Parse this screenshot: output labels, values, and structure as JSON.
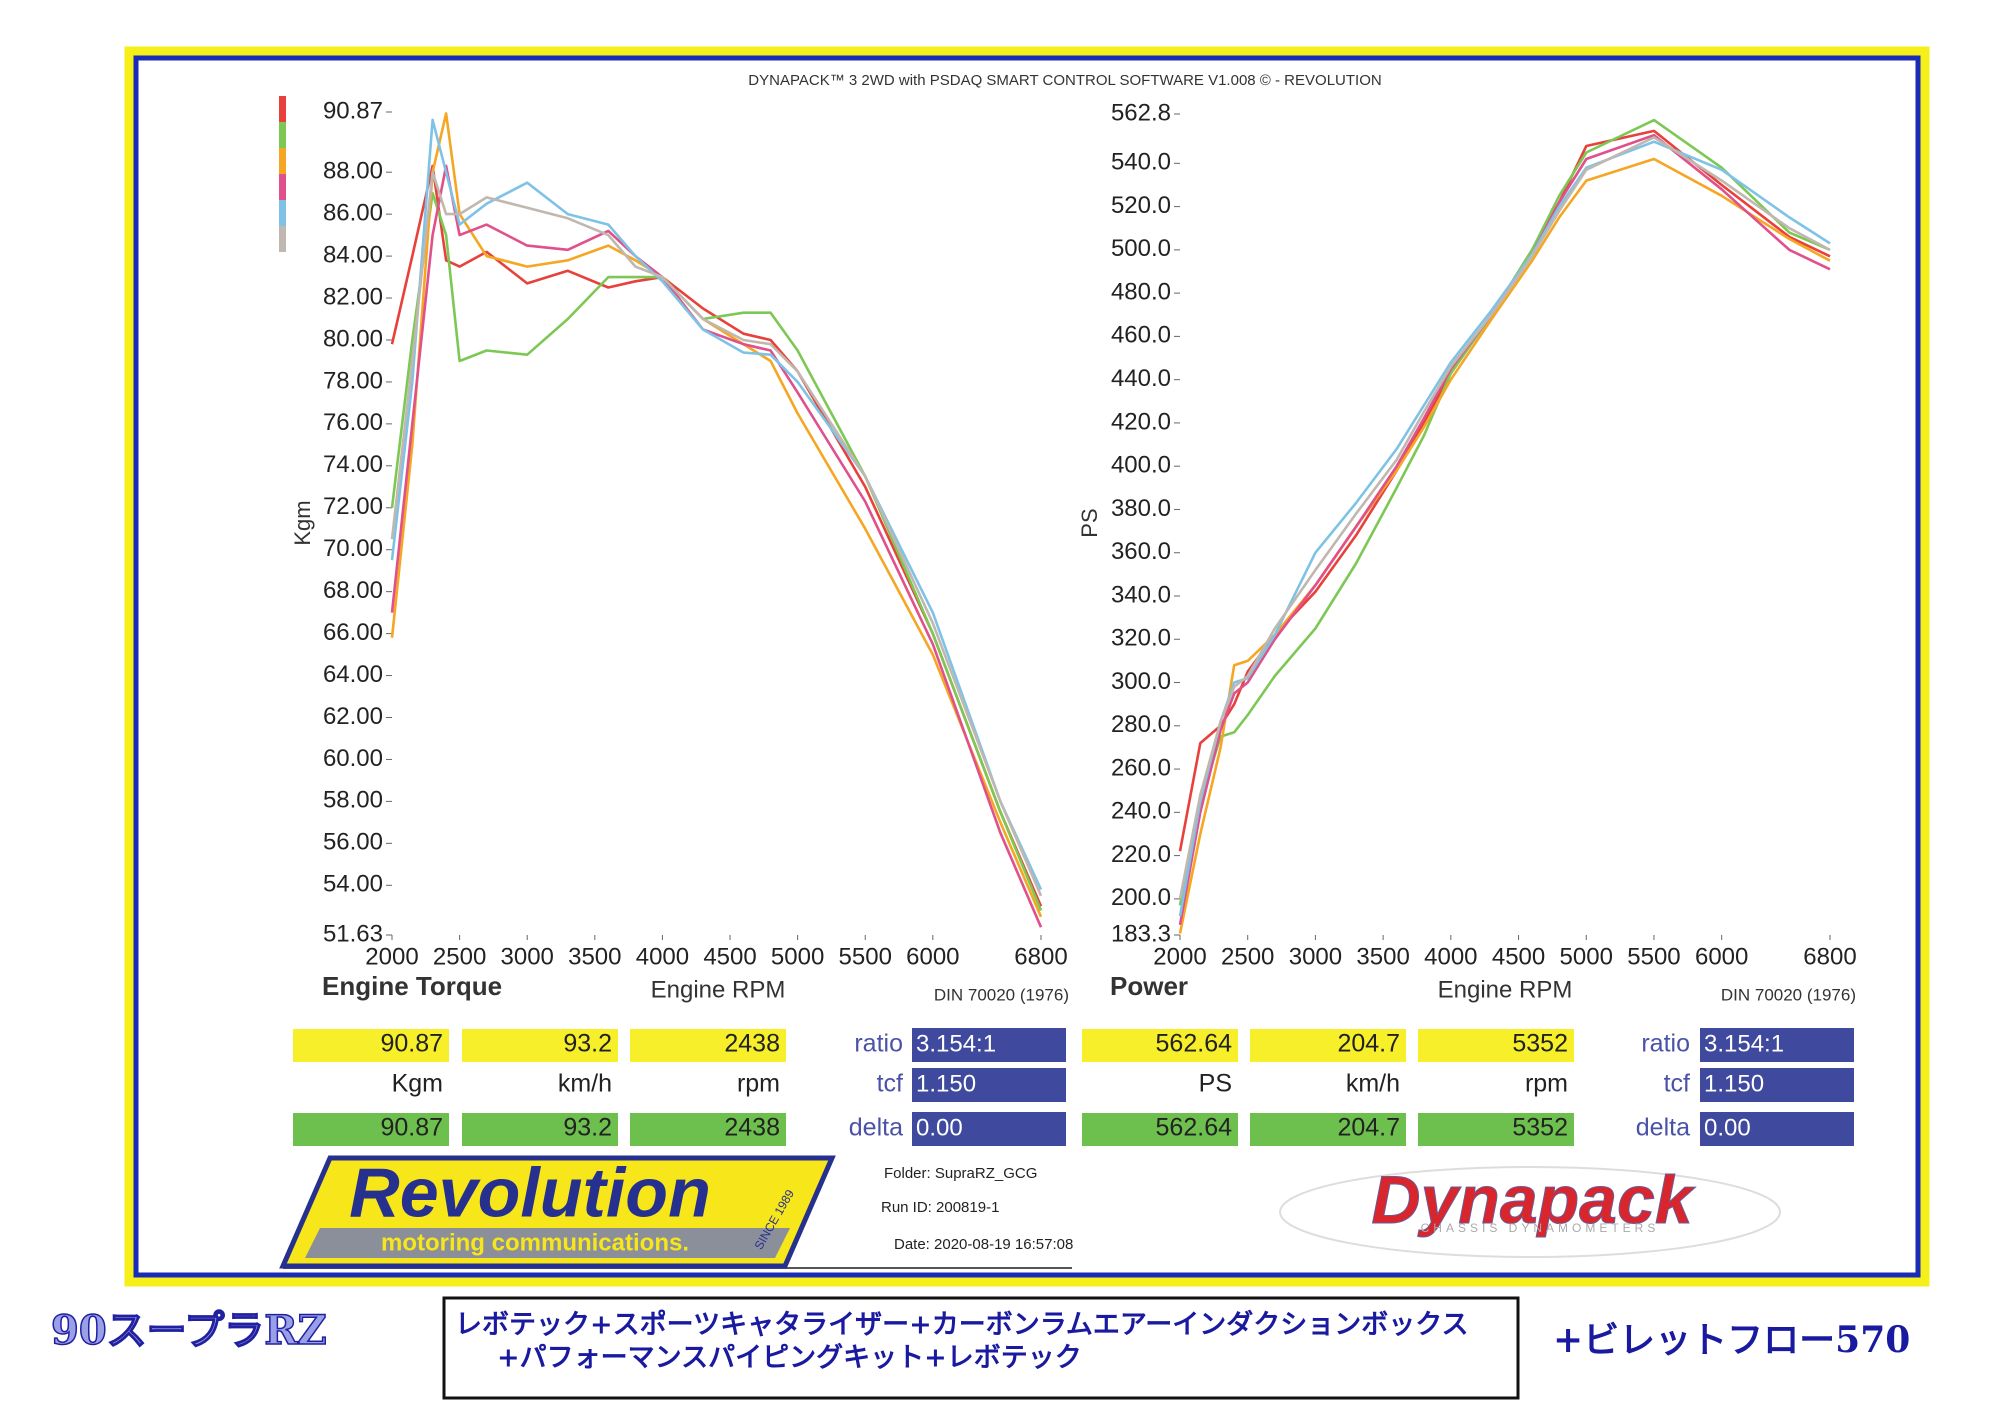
{
  "header": {
    "title": "DYNAPACK™ 3 2WD with PSDAQ SMART CONTROL SOFTWARE V1.008 © - REVOLUTION"
  },
  "chart_data": [
    {
      "type": "line",
      "title": "Engine Torque",
      "xlabel": "Engine RPM",
      "ylabel": "Kgm",
      "note": "DIN 70020 (1976)",
      "x": [
        2000,
        2150,
        2300,
        2400,
        2500,
        2700,
        3000,
        3300,
        3600,
        3800,
        4000,
        4300,
        4600,
        4800,
        5000,
        5500,
        6000,
        6500,
        6800
      ],
      "xlim": [
        2000,
        6800
      ],
      "xticks": [
        2000,
        2500,
        3000,
        3500,
        4000,
        4500,
        5000,
        5500,
        6000,
        6800
      ],
      "ylim": [
        51.63,
        90.87
      ],
      "yticks": [
        51.63,
        {
          "value": 54,
          "label": "54.00"
        },
        {
          "value": 56,
          "label": "56.00"
        },
        {
          "value": 58,
          "label": "58.00"
        },
        {
          "value": 60,
          "label": "60.00"
        },
        {
          "value": 62,
          "label": "62.00"
        },
        {
          "value": 64,
          "label": "64.00"
        },
        {
          "value": 66,
          "label": "66.00"
        },
        {
          "value": 68,
          "label": "68.00"
        },
        {
          "value": 70,
          "label": "70.00"
        },
        {
          "value": 72,
          "label": "72.00"
        },
        {
          "value": 74,
          "label": "74.00"
        },
        {
          "value": 76,
          "label": "76.00"
        },
        {
          "value": 78,
          "label": "78.00"
        },
        {
          "value": 80,
          "label": "80.00"
        },
        {
          "value": 82,
          "label": "82.00"
        },
        {
          "value": 84,
          "label": "84.00"
        },
        {
          "value": 86,
          "label": "86.00"
        },
        {
          "value": 88,
          "label": "88.00"
        },
        90.87
      ],
      "series": [
        {
          "color": "#e8413c",
          "values": [
            79.8,
            84,
            88.3,
            83.8,
            83.5,
            84.2,
            82.7,
            83.3,
            82.5,
            82.8,
            83,
            81.5,
            80.3,
            80,
            78.5,
            73,
            66,
            57.5,
            53
          ]
        },
        {
          "color": "#7dc855",
          "values": [
            72,
            80,
            87,
            85,
            79,
            79.5,
            79.3,
            81,
            83,
            83,
            83,
            81,
            81.3,
            81.3,
            79.5,
            73.5,
            66,
            57.5,
            52.8
          ]
        },
        {
          "color": "#f5a623",
          "values": [
            65.8,
            75,
            88,
            90.8,
            86,
            84,
            83.5,
            83.8,
            84.5,
            83.8,
            83,
            81,
            79.8,
            79,
            76.5,
            71,
            65,
            57,
            52.5
          ]
        },
        {
          "color": "#e0508a",
          "values": [
            67,
            76,
            85,
            88.3,
            85,
            85.5,
            84.5,
            84.3,
            85.2,
            84,
            83,
            80.5,
            79.8,
            79.5,
            77.5,
            72.3,
            65.5,
            56.5,
            52
          ]
        },
        {
          "color": "#7ec3e6",
          "values": [
            69.5,
            78,
            90.5,
            88,
            85.5,
            86.5,
            87.5,
            86,
            85.5,
            84,
            82.8,
            80.5,
            79.4,
            79.3,
            78,
            73.5,
            67,
            58,
            53.8
          ]
        },
        {
          "color": "#c0b8b0",
          "values": [
            70.5,
            79,
            88,
            86,
            86,
            86.8,
            86.3,
            85.8,
            85,
            83.5,
            83,
            81,
            80,
            79.8,
            78.5,
            73.5,
            66.5,
            58,
            53.5
          ]
        }
      ]
    },
    {
      "type": "line",
      "title": "Power",
      "xlabel": "Engine RPM",
      "ylabel": "PS",
      "note": "DIN 70020 (1976)",
      "x": [
        2000,
        2150,
        2300,
        2400,
        2500,
        2700,
        3000,
        3300,
        3600,
        3800,
        4000,
        4300,
        4600,
        4800,
        5000,
        5500,
        6000,
        6500,
        6800
      ],
      "xlim": [
        2000,
        6800
      ],
      "xticks": [
        2000,
        2500,
        3000,
        3500,
        4000,
        4500,
        5000,
        5500,
        6000,
        6800
      ],
      "ylim": [
        183.3,
        562.8
      ],
      "yticks": [
        183.3,
        {
          "value": 200,
          "label": "200.0"
        },
        {
          "value": 220,
          "label": "220.0"
        },
        {
          "value": 240,
          "label": "240.0"
        },
        {
          "value": 260,
          "label": "260.0"
        },
        {
          "value": 280,
          "label": "280.0"
        },
        {
          "value": 300,
          "label": "300.0"
        },
        {
          "value": 320,
          "label": "320.0"
        },
        {
          "value": 340,
          "label": "340.0"
        },
        {
          "value": 360,
          "label": "360.0"
        },
        {
          "value": 380,
          "label": "380.0"
        },
        {
          "value": 400,
          "label": "400.0"
        },
        {
          "value": 420,
          "label": "420.0"
        },
        {
          "value": 440,
          "label": "440.0"
        },
        {
          "value": 460,
          "label": "460.0"
        },
        {
          "value": 480,
          "label": "480.0"
        },
        {
          "value": 500,
          "label": "500.0"
        },
        {
          "value": 520,
          "label": "520.0"
        },
        {
          "value": 540,
          "label": "540.0"
        },
        562.8
      ],
      "series": [
        {
          "color": "#e8413c",
          "values": [
            222,
            272,
            280,
            290,
            305,
            322,
            342,
            368,
            398,
            420,
            443,
            470,
            500,
            522,
            548,
            555,
            530,
            506,
            497
          ]
        },
        {
          "color": "#7dc855",
          "values": [
            197,
            245,
            275,
            277,
            285,
            303,
            325,
            355,
            390,
            414,
            443,
            470,
            500,
            525,
            545,
            560,
            538,
            508,
            500
          ]
        },
        {
          "color": "#f5a623",
          "values": [
            184,
            230,
            270,
            308,
            310,
            322,
            345,
            372,
            398,
            418,
            440,
            468,
            495,
            515,
            532,
            542,
            525,
            505,
            495
          ]
        },
        {
          "color": "#e0508a",
          "values": [
            188,
            240,
            278,
            295,
            300,
            320,
            345,
            372,
            400,
            422,
            445,
            470,
            498,
            522,
            542,
            553,
            528,
            500,
            491
          ]
        },
        {
          "color": "#7ec3e6",
          "values": [
            192,
            245,
            282,
            300,
            302,
            322,
            360,
            383,
            408,
            428,
            448,
            472,
            498,
            520,
            538,
            550,
            537,
            515,
            503
          ]
        },
        {
          "color": "#c0b8b0",
          "values": [
            200,
            248,
            282,
            298,
            303,
            325,
            352,
            378,
            403,
            425,
            446,
            470,
            497,
            518,
            537,
            552,
            532,
            510,
            500
          ]
        }
      ]
    }
  ],
  "readouts": [
    {
      "top": [
        "90.87",
        "93.2",
        "2438"
      ],
      "units": [
        "Kgm",
        "km/h",
        "rpm"
      ],
      "bottom": [
        "90.87",
        "93.2",
        "2438"
      ],
      "params": [
        {
          "label": "ratio",
          "value": "3.154:1"
        },
        {
          "label": "tcf",
          "value": "1.150"
        },
        {
          "label": "delta",
          "value": "0.00"
        }
      ]
    },
    {
      "top": [
        "562.64",
        "204.7",
        "5352"
      ],
      "units": [
        "PS",
        "km/h",
        "rpm"
      ],
      "bottom": [
        "562.64",
        "204.7",
        "5352"
      ],
      "params": [
        {
          "label": "ratio",
          "value": "3.154:1"
        },
        {
          "label": "tcf",
          "value": "1.150"
        },
        {
          "label": "delta",
          "value": "0.00"
        }
      ]
    }
  ],
  "info": {
    "folder": "Folder:  SupraRZ_GCG",
    "run_id": "Run ID:  200819-1",
    "date": "Date:  2020-08-19 16:57:08"
  },
  "logos": {
    "revolution": "Revolution",
    "revolution_sub": "motoring communications.",
    "revolution_since": "SINCE 1989",
    "dynapack": "Dynapack",
    "dynapack_sub": "CHASSIS  DYNAMOMETERS"
  },
  "footer": {
    "model": "90スープラRZ",
    "parts_line1": "レボテック+スポーツキャタライザー+カーボンラムエアーインダクションボックス",
    "parts_line2": "+パフォーマンスパイピングキット+レボテック",
    "extra": "+ビレットフロー570"
  }
}
